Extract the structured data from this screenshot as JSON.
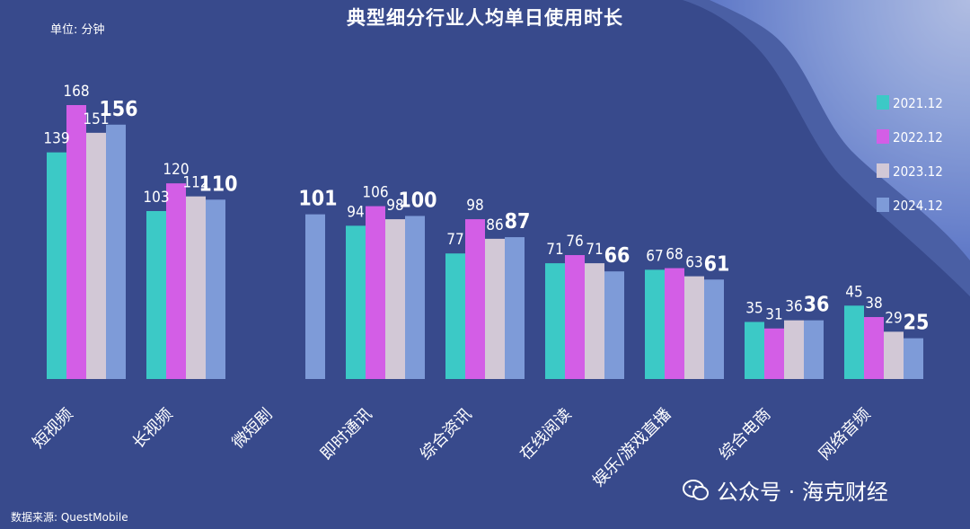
{
  "title": "典型细分行业人均单日使用时长",
  "unit_label": "单位: 分钟",
  "source": "数据来源: QuestMobile",
  "watermark": "公众号 · 海克财经",
  "colors": {
    "background": "#384a8c",
    "s2021": "#3cc9c6",
    "s2022": "#d35ee6",
    "s2023": "#d2c8d6",
    "s2024": "#7e9bd8"
  },
  "chart_data": {
    "type": "bar",
    "categories": [
      "短视频",
      "长视频",
      "微短剧",
      "即时通讯",
      "综合资讯",
      "在线阅读",
      "娱乐/游戏直播",
      "综合电商",
      "网络音频"
    ],
    "series": [
      {
        "name": "2021.12",
        "color": "#3cc9c6",
        "values": [
          139,
          103,
          null,
          94,
          77,
          71,
          67,
          35,
          45
        ]
      },
      {
        "name": "2022.12",
        "color": "#d35ee6",
        "values": [
          168,
          120,
          null,
          106,
          98,
          76,
          68,
          31,
          38
        ]
      },
      {
        "name": "2023.12",
        "color": "#d2c8d6",
        "values": [
          151,
          112,
          null,
          98,
          86,
          71,
          63,
          36,
          29
        ]
      },
      {
        "name": "2024.12",
        "color": "#7e9bd8",
        "values": [
          156,
          110,
          101,
          100,
          87,
          66,
          61,
          36,
          25
        ]
      }
    ],
    "ylim": [
      0,
      168
    ],
    "legend_position": "right",
    "grid": false,
    "data_labels": true
  }
}
